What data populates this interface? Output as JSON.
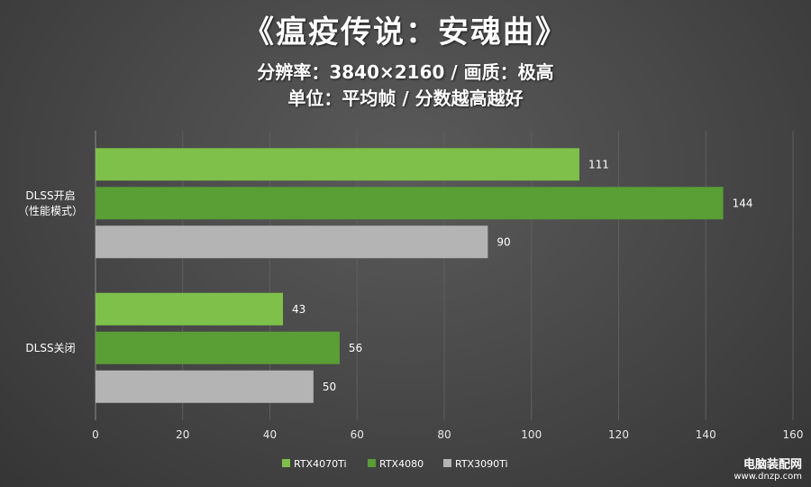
{
  "title": "《瘟疫传说：安魂曲》",
  "subtitle1": "分辨率：3840×2160 / 画质：极高",
  "subtitle2": "单位：平均帧 / 分数越高越好",
  "watermark": {
    "line1": "电脑装配网",
    "line2": "www.dnzp.com"
  },
  "colors": {
    "RTX4070Ti": "#7ec04a",
    "RTX4080": "#5a9e36",
    "RTX3090Ti": "#b4b4b4"
  },
  "chart_data": {
    "type": "bar",
    "orientation": "horizontal",
    "categories": [
      {
        "label_lines": [
          "DLSS开启",
          "（性能模式）"
        ]
      },
      {
        "label_lines": [
          "DLSS关闭"
        ]
      }
    ],
    "series": [
      {
        "name": "RTX4070Ti",
        "values": [
          111,
          43
        ]
      },
      {
        "name": "RTX4080",
        "values": [
          144,
          56
        ]
      },
      {
        "name": "RTX3090Ti",
        "values": [
          90,
          50
        ]
      }
    ],
    "xlim": [
      0,
      160
    ],
    "xticks": [
      0,
      20,
      40,
      60,
      80,
      100,
      120,
      140,
      160
    ],
    "grid": true,
    "legend_position": "bottom"
  }
}
